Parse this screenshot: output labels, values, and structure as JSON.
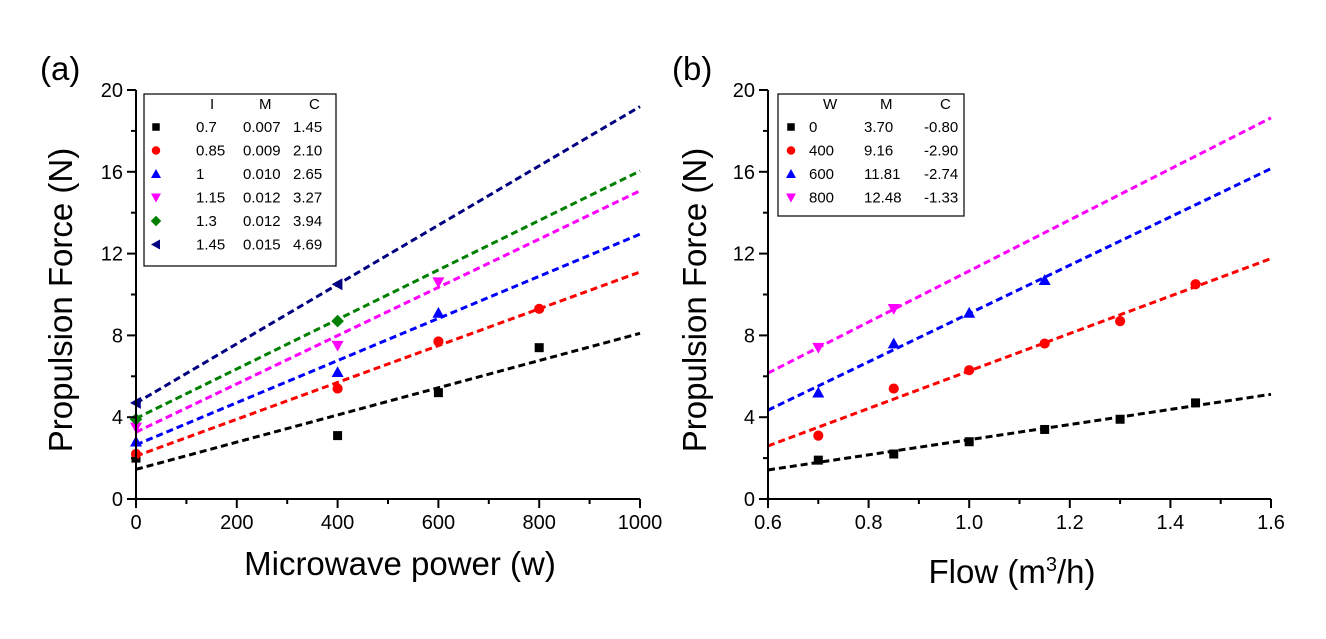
{
  "chart_data": [
    {
      "type": "scatter",
      "panel_label": "(a)",
      "xlabel": "Microwave power (w)",
      "ylabel": "Propulsion Force (N)",
      "xlim": [
        0,
        1000
      ],
      "ylim": [
        0,
        20
      ],
      "xticks": [
        "0",
        "200",
        "400",
        "600",
        "800",
        "1000"
      ],
      "yticks": [
        "0",
        "4",
        "8",
        "12",
        "16",
        "20"
      ],
      "legend_position": "top-left",
      "legend_headers": [
        "I",
        "M",
        "C"
      ],
      "series": [
        {
          "name": "0.7",
          "m": "0.007",
          "c": "1.45",
          "slope": 0.00665,
          "intercept": 1.45,
          "color": "#000000",
          "marker": "square",
          "points": [
            [
              0,
              2.0
            ],
            [
              400,
              3.1
            ],
            [
              600,
              5.2
            ],
            [
              800,
              7.4
            ]
          ]
        },
        {
          "name": "0.85",
          "m": "0.009",
          "c": "2.10",
          "slope": 0.009,
          "intercept": 2.1,
          "color": "#ff0000",
          "marker": "circle",
          "points": [
            [
              0,
              2.2
            ],
            [
              400,
              5.4
            ],
            [
              600,
              7.7
            ],
            [
              800,
              9.3
            ]
          ]
        },
        {
          "name": "1",
          "m": "0.010",
          "c": "2.65",
          "slope": 0.0103,
          "intercept": 2.65,
          "color": "#0000ff",
          "marker": "triangle-up",
          "points": [
            [
              0,
              2.8
            ],
            [
              400,
              6.2
            ],
            [
              600,
              9.1
            ]
          ]
        },
        {
          "name": "1.15",
          "m": "0.012",
          "c": "3.27",
          "slope": 0.0118,
          "intercept": 3.27,
          "color": "#ff00ff",
          "marker": "triangle-down",
          "points": [
            [
              0,
              3.5
            ],
            [
              400,
              7.5
            ],
            [
              600,
              10.6
            ]
          ]
        },
        {
          "name": "1.3",
          "m": "0.012",
          "c": "3.94",
          "slope": 0.0121,
          "intercept": 3.94,
          "color": "#008000",
          "marker": "diamond",
          "points": [
            [
              0,
              3.9
            ],
            [
              400,
              8.7
            ]
          ]
        },
        {
          "name": "1.45",
          "m": "0.015",
          "c": "4.69",
          "slope": 0.0145,
          "intercept": 4.69,
          "color": "#000080",
          "marker": "triangle-left",
          "points": [
            [
              0,
              4.7
            ],
            [
              400,
              10.5
            ]
          ]
        }
      ]
    },
    {
      "type": "scatter",
      "panel_label": "(b)",
      "xlabel_main": "Flow (m",
      "xlabel_sup": "3",
      "xlabel_end": "/h)",
      "ylabel": "Propulsion Force (N)",
      "xlim": [
        0.6,
        1.6
      ],
      "ylim": [
        0,
        20
      ],
      "xticks": [
        "0.6",
        "0.8",
        "1.0",
        "1.2",
        "1.4",
        "1.6"
      ],
      "yticks": [
        "0",
        "4",
        "8",
        "12",
        "16",
        "20"
      ],
      "legend_position": "top-left",
      "legend_headers": [
        "W",
        "M",
        "C"
      ],
      "series": [
        {
          "name": "0",
          "m": "3.70",
          "c": "-0.80",
          "slope": 3.7,
          "intercept": -0.8,
          "color": "#000000",
          "marker": "square",
          "points": [
            [
              0.7,
              1.9
            ],
            [
              0.85,
              2.2
            ],
            [
              1.0,
              2.8
            ],
            [
              1.15,
              3.4
            ],
            [
              1.3,
              3.9
            ],
            [
              1.45,
              4.7
            ]
          ]
        },
        {
          "name": "400",
          "m": "9.16",
          "c": "-2.90",
          "slope": 9.16,
          "intercept": -2.9,
          "color": "#ff0000",
          "marker": "circle",
          "points": [
            [
              0.7,
              3.1
            ],
            [
              0.85,
              5.4
            ],
            [
              1.0,
              6.3
            ],
            [
              1.15,
              7.6
            ],
            [
              1.3,
              8.7
            ],
            [
              1.45,
              10.5
            ]
          ]
        },
        {
          "name": "600",
          "m": "11.81",
          "c": "-2.74",
          "slope": 11.81,
          "intercept": -2.74,
          "color": "#0000ff",
          "marker": "triangle-up",
          "points": [
            [
              0.7,
              5.2
            ],
            [
              0.85,
              7.6
            ],
            [
              1.0,
              9.1
            ],
            [
              1.15,
              10.7
            ]
          ]
        },
        {
          "name": "800",
          "m": "12.48",
          "c": "-1.33",
          "slope": 12.48,
          "intercept": -1.33,
          "color": "#ff00ff",
          "marker": "triangle-down",
          "points": [
            [
              0.7,
              7.4
            ],
            [
              0.85,
              9.3
            ]
          ]
        }
      ]
    }
  ]
}
